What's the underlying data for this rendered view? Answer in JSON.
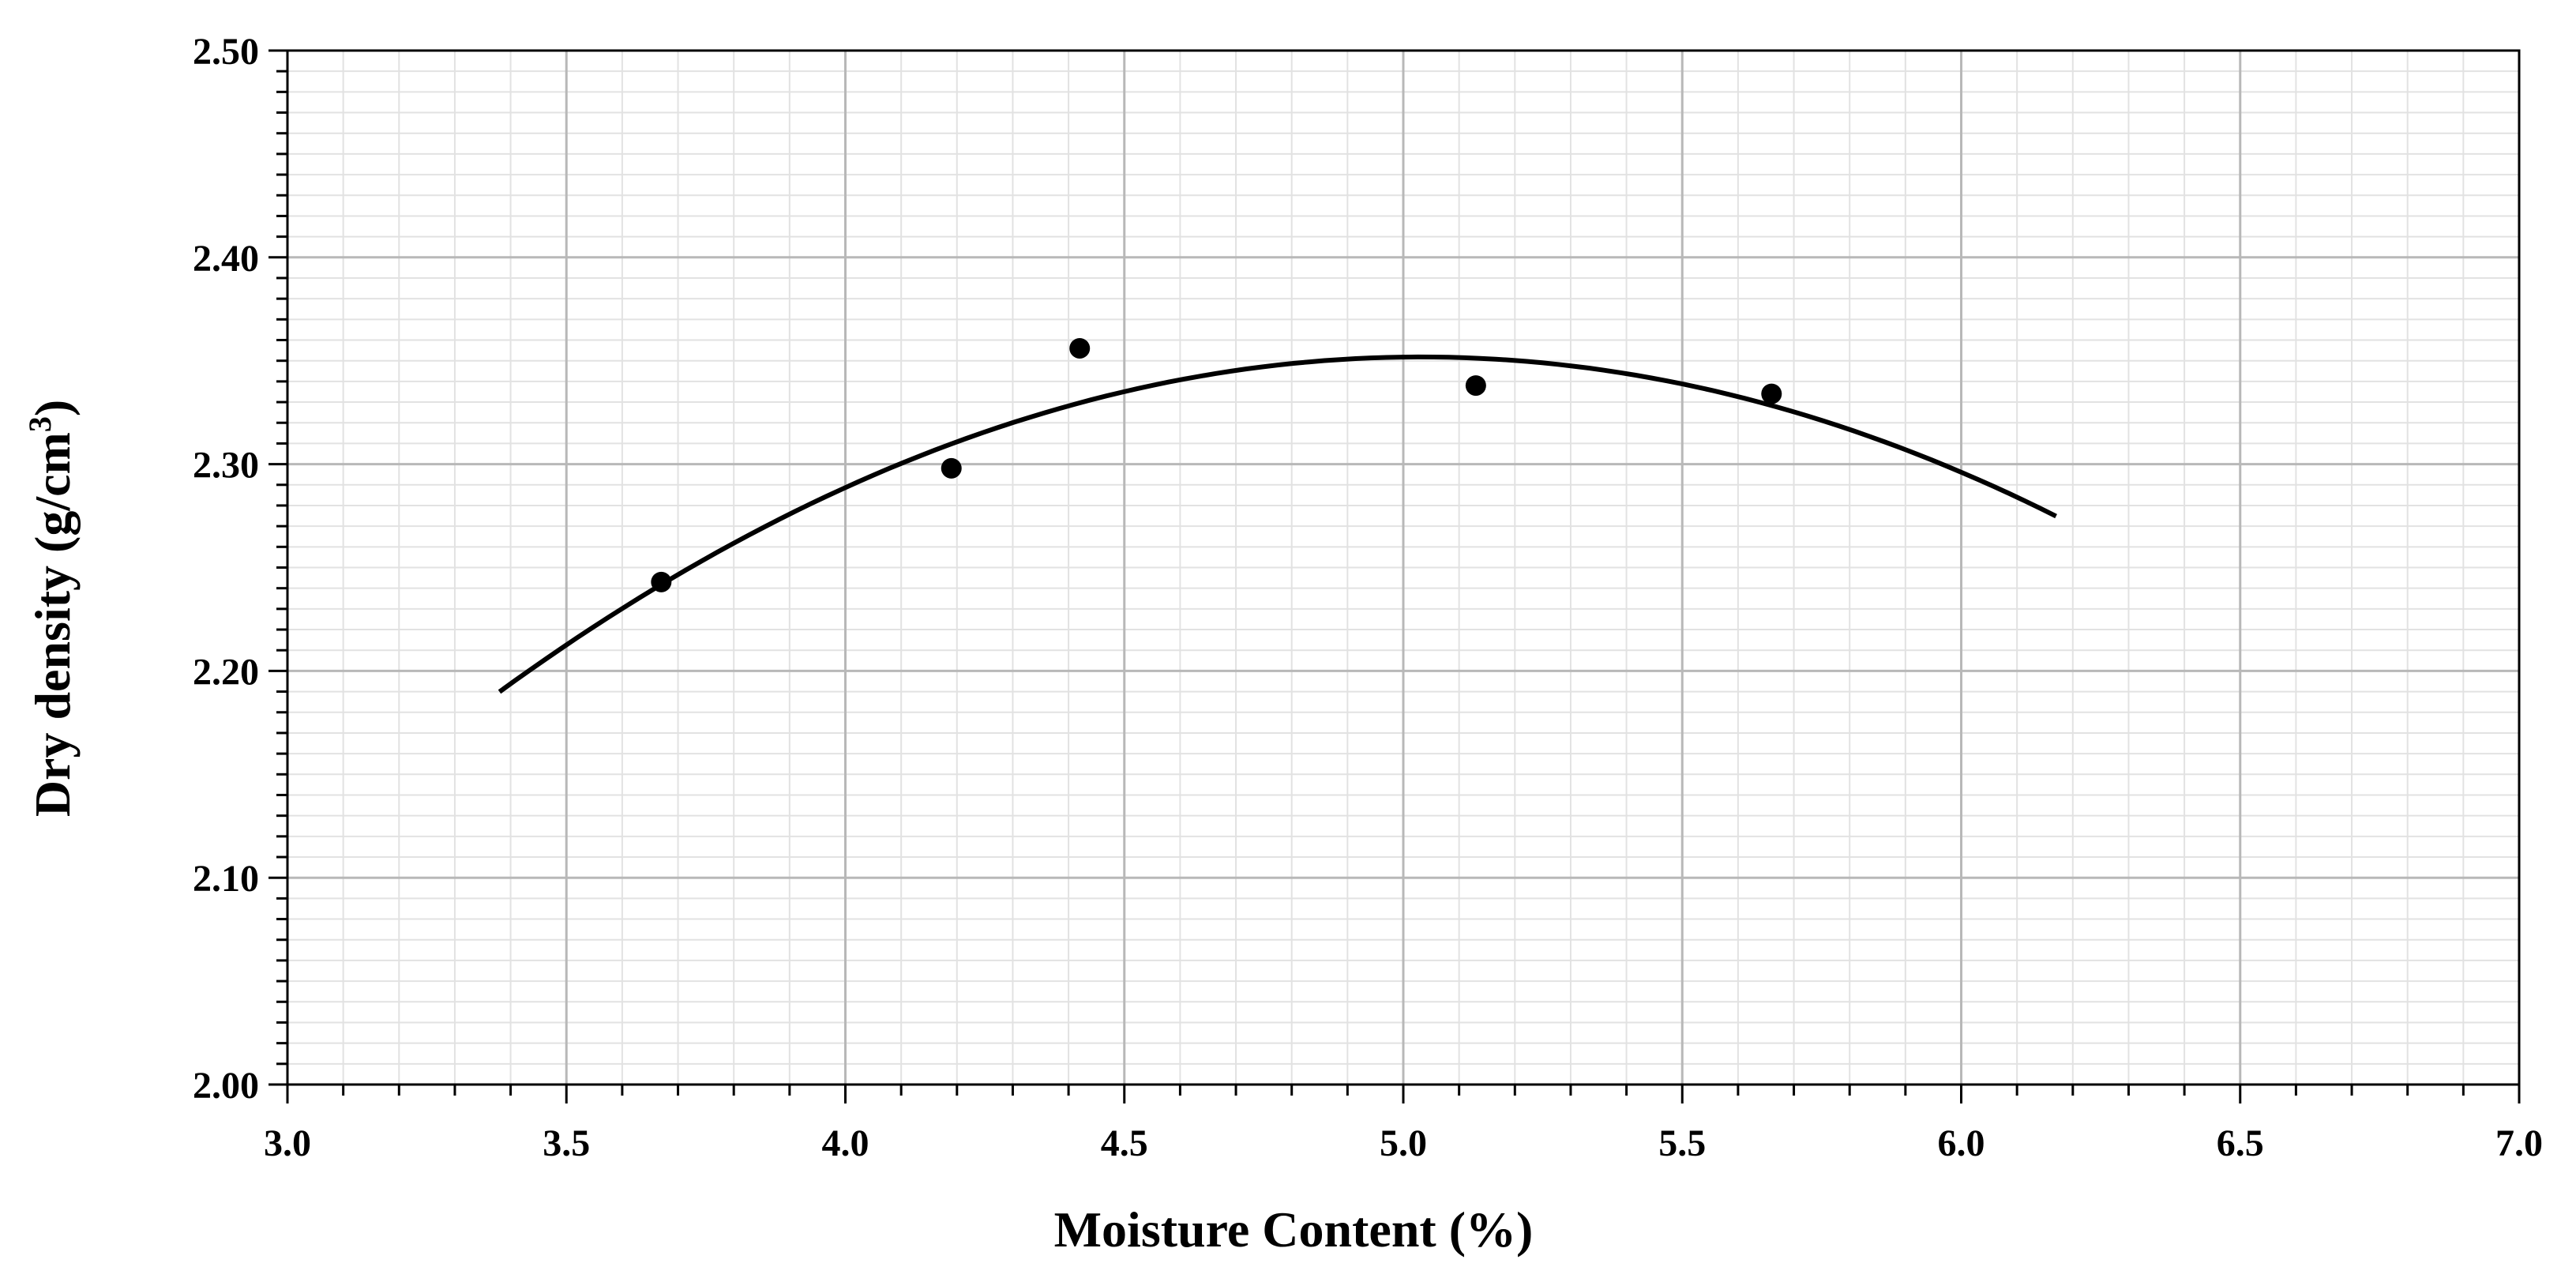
{
  "chart_data": {
    "type": "scatter",
    "xlabel": "Moisture Content (%)",
    "ylabel": "Dry density (g/cm",
    "ylabel_sup": "3",
    "ylabel_close": ")",
    "xlim": [
      3.0,
      7.0
    ],
    "ylim": [
      2.0,
      2.5
    ],
    "x_ticks": [
      "3.0",
      "3.5",
      "4.0",
      "4.5",
      "5.0",
      "5.5",
      "6.0",
      "6.5",
      "7.0"
    ],
    "y_ticks": [
      "2.00",
      "2.10",
      "2.20",
      "2.30",
      "2.40",
      "2.50"
    ],
    "grid": "major and minor",
    "legend": "none",
    "points": [
      {
        "x": 3.67,
        "y": 2.243
      },
      {
        "x": 4.19,
        "y": 2.298
      },
      {
        "x": 4.42,
        "y": 2.356
      },
      {
        "x": 5.13,
        "y": 2.338
      },
      {
        "x": 5.66,
        "y": 2.334
      }
    ],
    "trendline": {
      "type": "polynomial",
      "x_range": [
        3.38,
        6.17
      ],
      "samples": [
        {
          "x": 3.38,
          "y": 2.189
        },
        {
          "x": 3.67,
          "y": 2.243
        },
        {
          "x": 4.2,
          "y": 2.311
        },
        {
          "x": 4.5,
          "y": 2.335
        },
        {
          "x": 5.0,
          "y": 2.351
        },
        {
          "x": 5.5,
          "y": 2.338
        },
        {
          "x": 5.86,
          "y": 2.313
        },
        {
          "x": 6.17,
          "y": 2.274
        }
      ]
    },
    "colors": {
      "marker": "#000000",
      "line": "#000000",
      "major_grid": "#b8b8b8",
      "minor_grid": "#e2e2e2"
    }
  }
}
